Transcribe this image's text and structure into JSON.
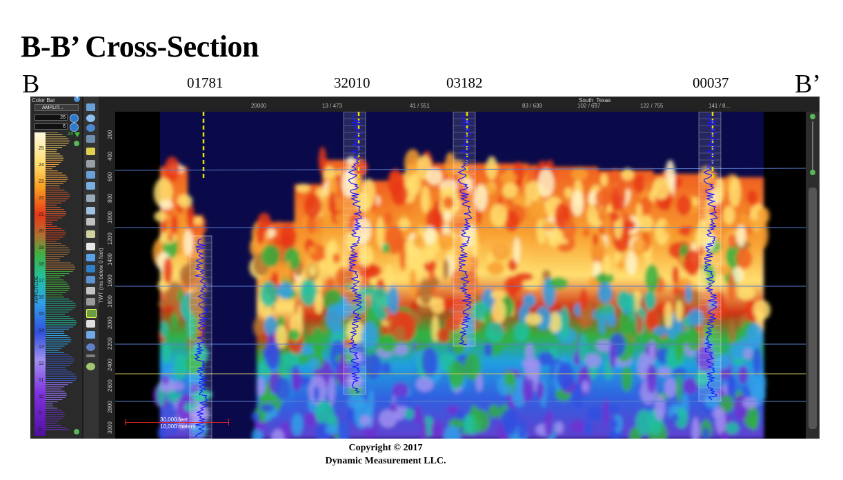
{
  "slide": {
    "title": "B-B’ Cross-Section",
    "left_label": "B",
    "right_label": "B’",
    "wells": [
      "01781",
      "32010",
      "03182",
      "00037"
    ],
    "copyright_line1": "Copyright  © 2017",
    "copyright_line2": "Dynamic Measurement LLC."
  },
  "app": {
    "color_bar": {
      "title": "Color Bar",
      "attribute_select": "AMPLIT...",
      "max_value": "26",
      "min_value": "6",
      "axis_title": "AMPLITUDE",
      "ticks": [
        "25",
        "24",
        "23",
        "22",
        "21",
        "20",
        "19",
        "18",
        "17",
        "16",
        "15",
        "14",
        "13",
        "12",
        "11",
        "10",
        "9",
        "8"
      ],
      "marker_value": "24"
    },
    "top_axis": {
      "title": "South_Texas",
      "ticks": [
        "20000",
        "13 / 473",
        "41 / 551",
        "83 / 639",
        "102 / 697",
        "122 / 755",
        "141 / 8..."
      ]
    },
    "depth_axis": {
      "title": "TWT (ms below 0 feet)",
      "ticks": [
        "200",
        "400",
        "600",
        "800",
        "1000",
        "1200",
        "1400",
        "1600",
        "1800",
        "2000",
        "2200",
        "2400",
        "2600",
        "2800",
        "3000"
      ]
    },
    "scale_bar": {
      "feet": "30,000 feet",
      "meters": "10,000 meters"
    },
    "colors": {
      "background": "#000000",
      "horizon_line": "#5a7fd0",
      "well_marker": "#e8e000",
      "log_curve": "#1a1aff"
    }
  }
}
